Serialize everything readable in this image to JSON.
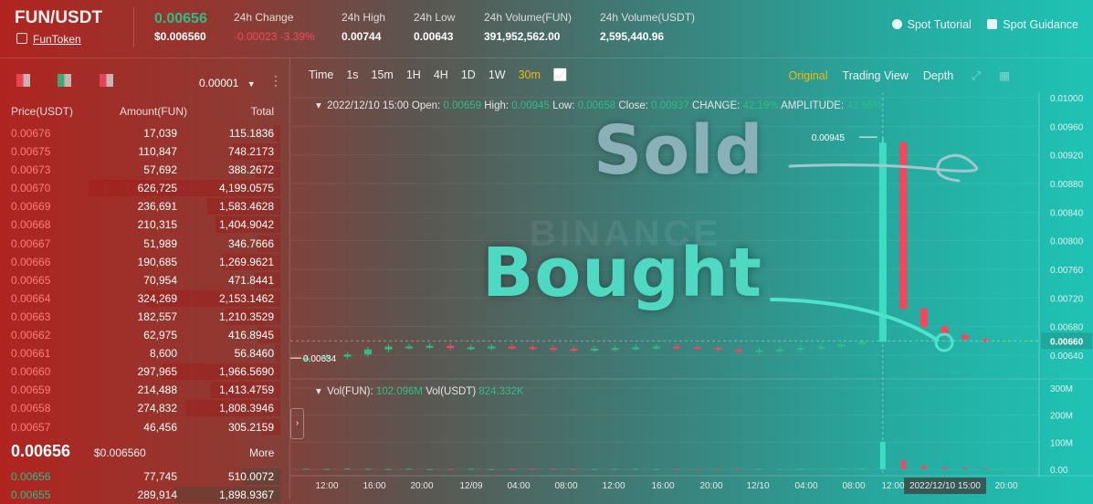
{
  "header": {
    "pair": "FUN/USDT",
    "token_link": "FunToken",
    "last_price": "0.00656",
    "last_price_usd": "$0.006560",
    "stats": [
      {
        "label": "24h Change",
        "value": "-0.00023 -3.39%",
        "negative": true
      },
      {
        "label": "24h High",
        "value": "0.00744"
      },
      {
        "label": "24h Low",
        "value": "0.00643"
      },
      {
        "label": "24h Volume(FUN)",
        "value": "391,952,562.00"
      },
      {
        "label": "24h Volume(USDT)",
        "value": "2,595,440.96"
      }
    ],
    "links": [
      "Spot Tutorial",
      "Spot Guidance"
    ]
  },
  "orderbook": {
    "precision": "0.00001",
    "headers": {
      "price": "Price(USDT)",
      "amount": "Amount(FUN)",
      "total": "Total"
    },
    "asks": [
      {
        "p": "0.00676",
        "a": "17,039",
        "t": "115.1836",
        "d": 0.04
      },
      {
        "p": "0.00675",
        "a": "110,847",
        "t": "748.2173",
        "d": 0.25
      },
      {
        "p": "0.00673",
        "a": "57,692",
        "t": "388.2672",
        "d": 0.13
      },
      {
        "p": "0.00670",
        "a": "626,725",
        "t": "4,199.0575",
        "d": 1.0
      },
      {
        "p": "0.00669",
        "a": "236,691",
        "t": "1,583.4628",
        "d": 0.38
      },
      {
        "p": "0.00668",
        "a": "210,315",
        "t": "1,404.9042",
        "d": 0.34
      },
      {
        "p": "0.00667",
        "a": "51,989",
        "t": "346.7666",
        "d": 0.12
      },
      {
        "p": "0.00666",
        "a": "190,685",
        "t": "1,269.9621",
        "d": 0.3
      },
      {
        "p": "0.00665",
        "a": "70,954",
        "t": "471.8441",
        "d": 0.14
      },
      {
        "p": "0.00664",
        "a": "324,269",
        "t": "2,153.1462",
        "d": 0.7
      },
      {
        "p": "0.00663",
        "a": "182,557",
        "t": "1,210.3529",
        "d": 0.29
      },
      {
        "p": "0.00662",
        "a": "62,975",
        "t": "416.8945",
        "d": 0.12
      },
      {
        "p": "0.00661",
        "a": "8,600",
        "t": "56.8460",
        "d": 0.03
      },
      {
        "p": "0.00660",
        "a": "297,965",
        "t": "1,966.5690",
        "d": 0.62
      },
      {
        "p": "0.00659",
        "a": "214,488",
        "t": "1,413.4759",
        "d": 0.36
      },
      {
        "p": "0.00658",
        "a": "274,832",
        "t": "1,808.3946",
        "d": 0.49
      },
      {
        "p": "0.00657",
        "a": "46,456",
        "t": "305.2159",
        "d": 0.1
      }
    ],
    "mid_price": "0.00656",
    "mid_usd": "$0.006560",
    "more_label": "More",
    "bids": [
      {
        "p": "0.00656",
        "a": "77,745",
        "t": "510.0072",
        "d": 0.2
      },
      {
        "p": "0.00655",
        "a": "289,914",
        "t": "1,898.9367",
        "d": 0.55
      }
    ]
  },
  "chart_toolbar": {
    "timeframes": [
      "Time",
      "1s",
      "15m",
      "1H",
      "4H",
      "1D",
      "1W",
      "30m"
    ],
    "active_timeframe": "30m",
    "views": [
      "Original",
      "Trading View",
      "Depth"
    ],
    "active_view": "Original"
  },
  "ohlc_line": {
    "date": "2022/12/10 15:00",
    "open_label": "Open:",
    "open": "0.00659",
    "high_label": "High:",
    "high": "0.00945",
    "low_label": "Low:",
    "low": "0.00658",
    "close_label": "Close:",
    "close": "0.00937",
    "change_label": "CHANGE:",
    "change": "42.19%",
    "amp_label": "AMPLITUDE:",
    "amp": "43.55%"
  },
  "volume_line": {
    "fun_label": "Vol(FUN):",
    "fun": "102.096M",
    "usdt_label": "Vol(USDT)",
    "usdt": "824.332K"
  },
  "annotations": {
    "sold": "Sold",
    "bought": "Bought",
    "watermark": "BINANCE"
  },
  "colors": {
    "up": "#2ebd85",
    "down": "#f6465d",
    "accent": "#f0b90b"
  },
  "chart_data": {
    "type": "candlestick",
    "price_axis_ticks": [
      "0.01000",
      "0.00960",
      "0.00920",
      "0.00880",
      "0.00840",
      "0.00800",
      "0.00760",
      "0.00720",
      "0.00680",
      "0.00640"
    ],
    "volume_axis_ticks": [
      "300M",
      "200M",
      "100M",
      "0.00"
    ],
    "time_axis_ticks": [
      "12:00",
      "16:00",
      "20:00",
      "12/09",
      "04:00",
      "08:00",
      "12:00",
      "16:00",
      "20:00",
      "12/10",
      "04:00",
      "08:00",
      "12:00",
      "2022/12/10 15:00",
      "20:00"
    ],
    "price_ylim": [
      0.0064,
      0.01
    ],
    "volume_ylim": [
      0,
      300
    ],
    "current_price_tag": "0.00660",
    "low_marker": "0.00634",
    "high_marker": "0.00945",
    "spike_candle": {
      "time": "2022/12/10 15:00",
      "open": 0.00659,
      "high": 0.00945,
      "low": 0.00658,
      "close": 0.00937
    },
    "baseline_series": [
      0.00636,
      0.00638,
      0.00641,
      0.00648,
      0.00652,
      0.00652,
      0.00653,
      0.0065,
      0.00651,
      0.00652,
      0.00651,
      0.0065,
      0.00649,
      0.00648,
      0.00649,
      0.0065,
      0.00651,
      0.00652,
      0.00651,
      0.0065,
      0.00648,
      0.00646,
      0.00647,
      0.00648,
      0.0065,
      0.00652,
      0.00655,
      0.00659,
      0.00937,
      0.00705,
      0.0068,
      0.00668,
      0.00662,
      0.0066,
      0.0066,
      0.0066
    ],
    "volume_series_M": [
      2,
      1,
      3,
      2,
      1,
      2,
      1,
      1,
      2,
      1,
      1,
      2,
      1,
      1,
      1,
      2,
      1,
      1,
      1,
      1,
      2,
      1,
      1,
      1,
      1,
      2,
      4,
      6,
      102,
      35,
      14,
      8,
      5,
      3,
      2,
      2
    ]
  }
}
